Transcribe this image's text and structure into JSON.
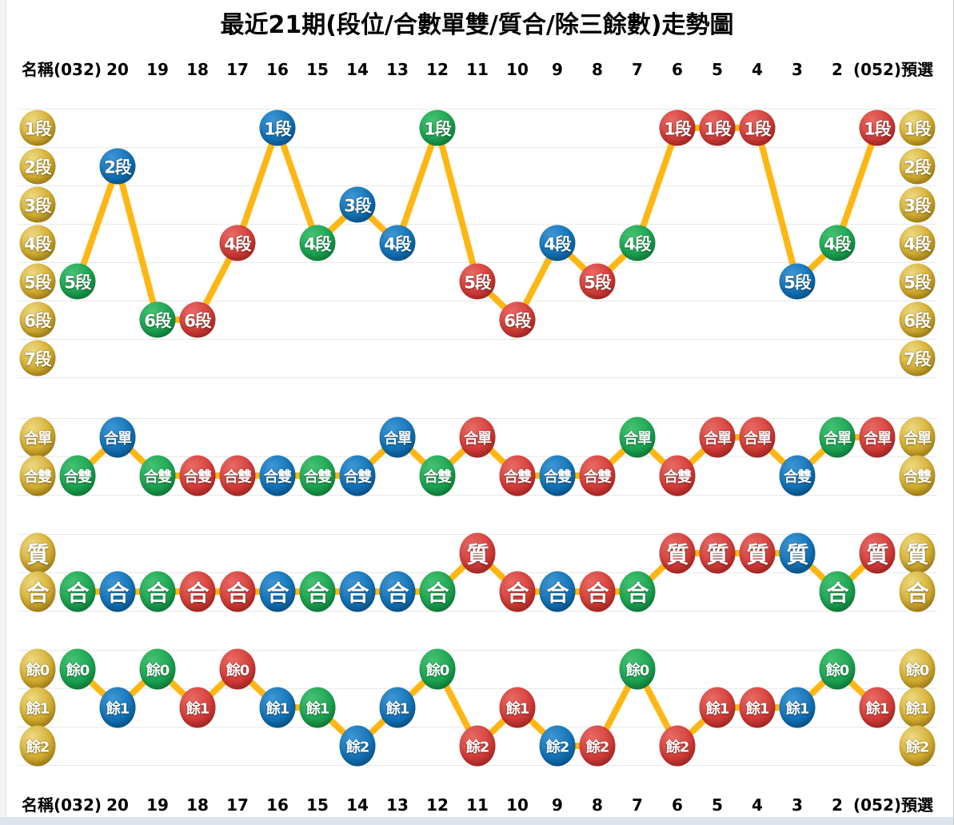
{
  "title": "最近21期(段位/合數單雙/質合/除三餘數)走勢圖",
  "header": {
    "name_label": "名稱",
    "preselect_label": "預選",
    "periods": [
      "(032)",
      "20",
      "19",
      "18",
      "17",
      "16",
      "15",
      "14",
      "13",
      "12",
      "11",
      "10",
      "9",
      "8",
      "7",
      "6",
      "5",
      "4",
      "3",
      "2",
      "(052)"
    ]
  },
  "colors": {
    "gold": "#d2ac2e",
    "blue": "#1272b6",
    "green": "#1ba351",
    "red": "#d23c38",
    "line": "#fdb714",
    "grid": "#e8e8e8",
    "ball_text": "#ffffff",
    "header_text": "#000000",
    "bottom_bar": "#dde4ee"
  },
  "chart_data": [
    {
      "type": "line",
      "id": "duanwei",
      "title": "段位",
      "row_labels": [
        "1段",
        "2段",
        "3段",
        "4段",
        "5段",
        "6段",
        "7段"
      ],
      "categories": [
        "(032)",
        "20",
        "19",
        "18",
        "17",
        "16",
        "15",
        "14",
        "13",
        "12",
        "11",
        "10",
        "9",
        "8",
        "7",
        "6",
        "5",
        "4",
        "3",
        "2",
        "(052)"
      ],
      "rows": [
        5,
        2,
        6,
        6,
        4,
        1,
        4,
        3,
        4,
        1,
        5,
        6,
        4,
        5,
        4,
        1,
        1,
        1,
        5,
        4,
        1
      ],
      "point_labels": [
        "5段",
        "2段",
        "6段",
        "6段",
        "4段",
        "1段",
        "4段",
        "3段",
        "4段",
        "1段",
        "5段",
        "6段",
        "4段",
        "5段",
        "4段",
        "1段",
        "1段",
        "1段",
        "5段",
        "4段",
        "1段"
      ],
      "point_colors": [
        "green",
        "blue",
        "green",
        "red",
        "red",
        "blue",
        "green",
        "blue",
        "blue",
        "green",
        "red",
        "red",
        "blue",
        "red",
        "green",
        "red",
        "red",
        "red",
        "blue",
        "green",
        "red"
      ]
    },
    {
      "type": "line",
      "id": "hedanshuang",
      "title": "合數單雙",
      "row_labels": [
        "合單",
        "合雙"
      ],
      "categories": [
        "(032)",
        "20",
        "19",
        "18",
        "17",
        "16",
        "15",
        "14",
        "13",
        "12",
        "11",
        "10",
        "9",
        "8",
        "7",
        "6",
        "5",
        "4",
        "3",
        "2",
        "(052)"
      ],
      "rows": [
        2,
        1,
        2,
        2,
        2,
        2,
        2,
        2,
        1,
        2,
        1,
        2,
        2,
        2,
        1,
        2,
        1,
        1,
        2,
        1,
        1
      ],
      "point_labels": [
        "合雙",
        "合單",
        "合雙",
        "合雙",
        "合雙",
        "合雙",
        "合雙",
        "合雙",
        "合單",
        "合雙",
        "合單",
        "合雙",
        "合雙",
        "合雙",
        "合單",
        "合雙",
        "合單",
        "合單",
        "合雙",
        "合單",
        "合單"
      ],
      "point_colors": [
        "green",
        "blue",
        "green",
        "red",
        "red",
        "blue",
        "green",
        "blue",
        "blue",
        "green",
        "red",
        "red",
        "blue",
        "red",
        "green",
        "red",
        "red",
        "red",
        "blue",
        "green",
        "red"
      ]
    },
    {
      "type": "line",
      "id": "zhihe",
      "title": "質合",
      "row_labels": [
        "質",
        "合"
      ],
      "categories": [
        "(032)",
        "20",
        "19",
        "18",
        "17",
        "16",
        "15",
        "14",
        "13",
        "12",
        "11",
        "10",
        "9",
        "8",
        "7",
        "6",
        "5",
        "4",
        "3",
        "2",
        "(052)"
      ],
      "rows": [
        2,
        2,
        2,
        2,
        2,
        2,
        2,
        2,
        2,
        2,
        1,
        2,
        2,
        2,
        2,
        1,
        1,
        1,
        1,
        2,
        1
      ],
      "point_labels": [
        "合",
        "合",
        "合",
        "合",
        "合",
        "合",
        "合",
        "合",
        "合",
        "合",
        "質",
        "合",
        "合",
        "合",
        "合",
        "質",
        "質",
        "質",
        "質",
        "合",
        "質"
      ],
      "point_colors": [
        "green",
        "blue",
        "green",
        "red",
        "red",
        "blue",
        "green",
        "blue",
        "blue",
        "green",
        "red",
        "red",
        "blue",
        "red",
        "green",
        "red",
        "red",
        "red",
        "blue",
        "green",
        "red"
      ]
    },
    {
      "type": "line",
      "id": "chusanyushu",
      "title": "除三餘數",
      "row_labels": [
        "餘0",
        "餘1",
        "餘2"
      ],
      "categories": [
        "(032)",
        "20",
        "19",
        "18",
        "17",
        "16",
        "15",
        "14",
        "13",
        "12",
        "11",
        "10",
        "9",
        "8",
        "7",
        "6",
        "5",
        "4",
        "3",
        "2",
        "(052)"
      ],
      "rows": [
        1,
        2,
        1,
        2,
        1,
        2,
        2,
        3,
        2,
        1,
        3,
        2,
        3,
        3,
        1,
        3,
        2,
        2,
        2,
        1,
        2
      ],
      "point_labels": [
        "餘0",
        "餘1",
        "餘0",
        "餘1",
        "餘0",
        "餘1",
        "餘1",
        "餘2",
        "餘1",
        "餘0",
        "餘2",
        "餘1",
        "餘2",
        "餘2",
        "餘0",
        "餘2",
        "餘1",
        "餘1",
        "餘1",
        "餘0",
        "餘1"
      ],
      "point_colors": [
        "green",
        "blue",
        "green",
        "red",
        "red",
        "blue",
        "green",
        "blue",
        "blue",
        "green",
        "red",
        "red",
        "blue",
        "red",
        "green",
        "red",
        "red",
        "red",
        "blue",
        "green",
        "red"
      ]
    }
  ]
}
